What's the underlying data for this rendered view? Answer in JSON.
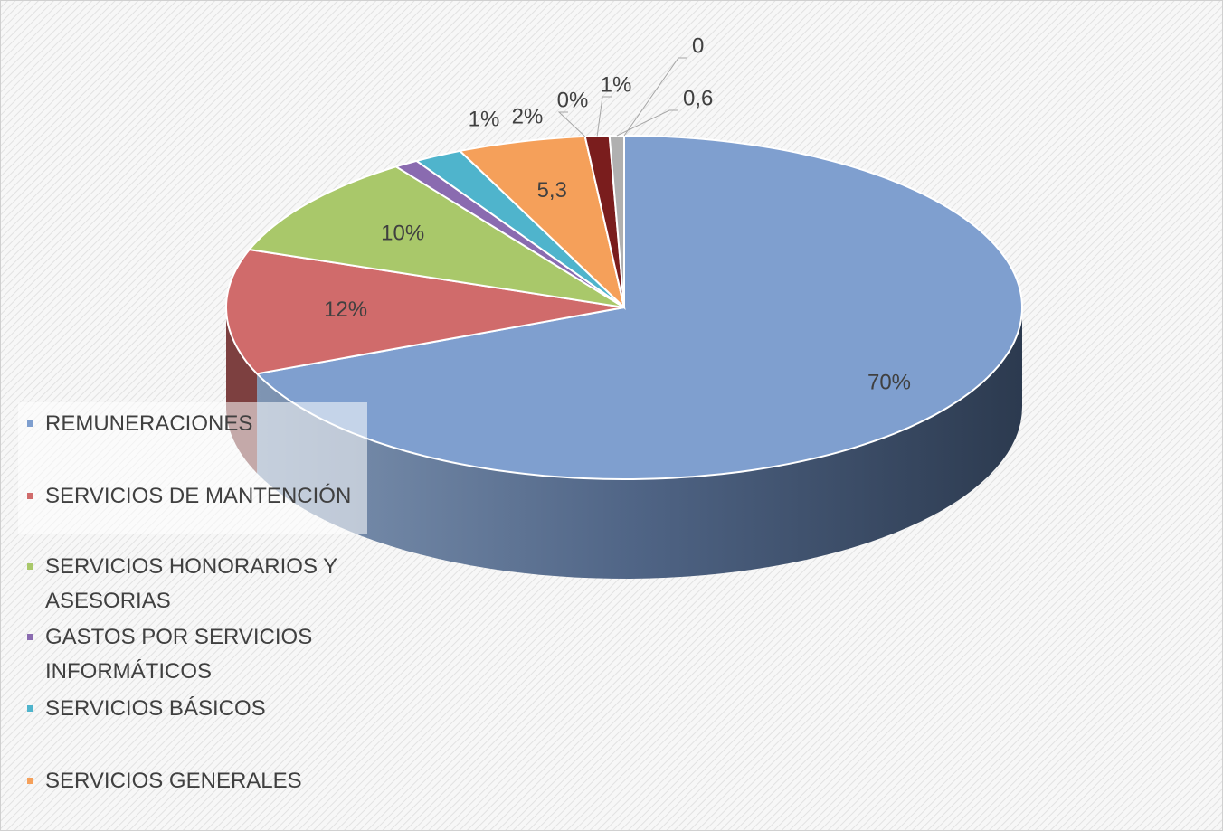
{
  "chart_data": {
    "type": "pie",
    "categories": [
      "REMUNERACIONES",
      "SERVICIOS DE MANTENCIÓN",
      "SERVICIOS HONORARIOS Y ASESORIAS",
      "GASTOS POR SERVICIOS INFORMÁTICOS",
      "SERVICIOS BÁSICOS",
      "SERVICIOS GENERALES",
      null,
      null,
      null,
      null
    ],
    "values": [
      70,
      12,
      10,
      1,
      2,
      5.3,
      0,
      1,
      0.6,
      0
    ],
    "value_labels": [
      "70%",
      "12%",
      "10%",
      "1%",
      "2%",
      "5,3",
      "0%",
      "1%",
      "0,6",
      "0"
    ],
    "colors": [
      "#7f9fcf",
      "#d06b6b",
      "#a9c86a",
      "#8a6bb0",
      "#4fb4cc",
      "#f5a05a",
      "#6b8fc4",
      "#7a1d1d",
      "#b0b0b0",
      "#909090"
    ],
    "legend": "left"
  }
}
